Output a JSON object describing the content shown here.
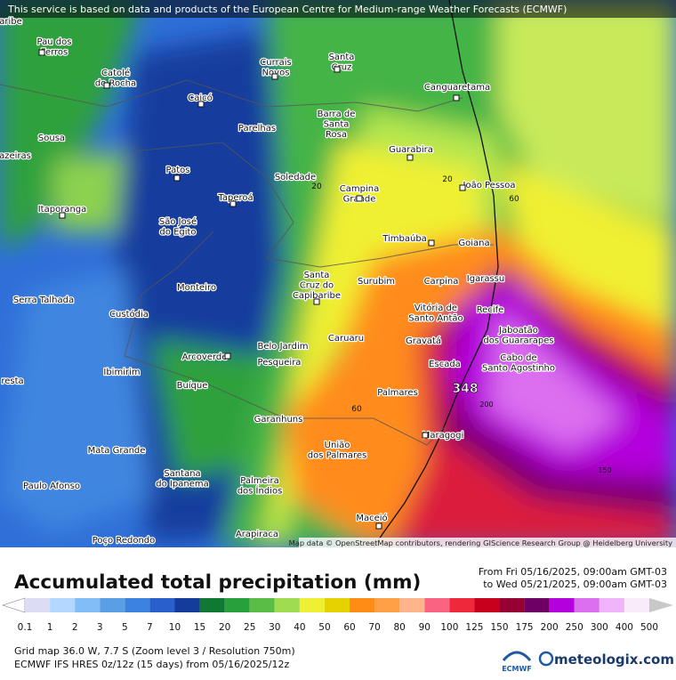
{
  "header": {
    "notice": "This service is based on data and products of the European Centre for Medium-range Weather Forecasts (ECMWF)"
  },
  "places": [
    [
      "Pau dos",
      "Ferros"
    ],
    [
      "Catolé",
      "do Rocha"
    ],
    [
      "Caicó"
    ],
    [
      "Currais",
      "Novos"
    ],
    [
      "Santa",
      "Cruz"
    ],
    [
      "Canguaretama"
    ],
    [
      "Sousa"
    ],
    [
      "Parelhas"
    ],
    [
      "Barra de",
      "Santa",
      "Rosa"
    ],
    [
      "Patos"
    ],
    [
      "Guarabira"
    ],
    [
      "Soledade"
    ],
    [
      "João Pessoa"
    ],
    [
      "Itaporanga"
    ],
    [
      "Taperoá"
    ],
    [
      "Campina",
      "Grande"
    ],
    [
      "São José",
      "do Egito"
    ],
    [
      "Timbaúba"
    ],
    [
      "Goiana"
    ],
    [
      "Monteiro"
    ],
    [
      "Santa",
      "Cruz do",
      "Capibaribe"
    ],
    [
      "Surubim"
    ],
    [
      "Carpina"
    ],
    [
      "Igarassu"
    ],
    [
      "Serra Talhada"
    ],
    [
      "Custódia"
    ],
    [
      "Vitória de",
      "Santo Antão"
    ],
    [
      "Recife"
    ],
    [
      "Jaboatão",
      "dos Guararapes"
    ],
    [
      "Caruaru"
    ],
    [
      "Gravatá"
    ],
    [
      "Belo Jardim"
    ],
    [
      "Arcoverde"
    ],
    [
      "Pesqueira"
    ],
    [
      "Escada"
    ],
    [
      "Cabo de",
      "Santo Agostinho"
    ],
    [
      "Ibimirim"
    ],
    [
      "Buíque"
    ],
    [
      "Palmares"
    ],
    [
      "Garanhuns"
    ],
    [
      "Maragogi"
    ],
    [
      "União",
      "dos Palmares"
    ],
    [
      "Mata Grande"
    ],
    [
      "Santana",
      "do Ipanema"
    ],
    [
      "Palmeira",
      "dos Índios"
    ],
    [
      "Paulo Afonso"
    ],
    [
      "Maceió"
    ],
    [
      "Arapiraca"
    ],
    [
      "Poço Redondo"
    ],
    [
      "aribe"
    ],
    [
      "azeiras"
    ],
    [
      "resta"
    ]
  ],
  "contour_labels": [
    20,
    20,
    60,
    60,
    348,
    200,
    150
  ],
  "attribution": "Map data © OpenStreetMap contributors, rendering GIScience Research Group @ Heidelberg University",
  "legend": {
    "title": "Accumulated total precipitation (mm)",
    "period": [
      "From Fri 05/16/2025, 09:00am GMT-03",
      "to Wed 05/21/2025, 09:00am GMT-03"
    ],
    "levels": [
      0.1,
      1,
      2,
      3,
      5,
      7,
      10,
      15,
      20,
      25,
      30,
      40,
      50,
      60,
      70,
      80,
      90,
      100,
      125,
      150,
      175,
      200,
      250,
      300,
      400,
      500
    ],
    "colors": [
      "#ffffff",
      "#dcdcf5",
      "#b4d7ff",
      "#82bef5",
      "#5a9ee6",
      "#3c82e1",
      "#285fcd",
      "#143c9b",
      "#0f7832",
      "#28a03c",
      "#5abe46",
      "#a0dc50",
      "#f0f032",
      "#e6d200",
      "#ff8c14",
      "#ff9f46",
      "#ffb48c",
      "#fa6482",
      "#f0283c",
      "#c8001e",
      "#960032",
      "#6e0064",
      "#b400dc",
      "#dc6ef0",
      "#f0b4fa",
      "#faebfa",
      "#c8c8c8"
    ]
  },
  "footer": {
    "lines": [
      "Grid map 36.0 W, 7.7 S (Zoom level 3 / Resolution 750m)",
      "ECMWF IFS HRES 0z/12z (15 days) from  05/16/2025/12z"
    ],
    "ecmwf_logo": "ECMWF",
    "brand": "meteologix.com"
  }
}
